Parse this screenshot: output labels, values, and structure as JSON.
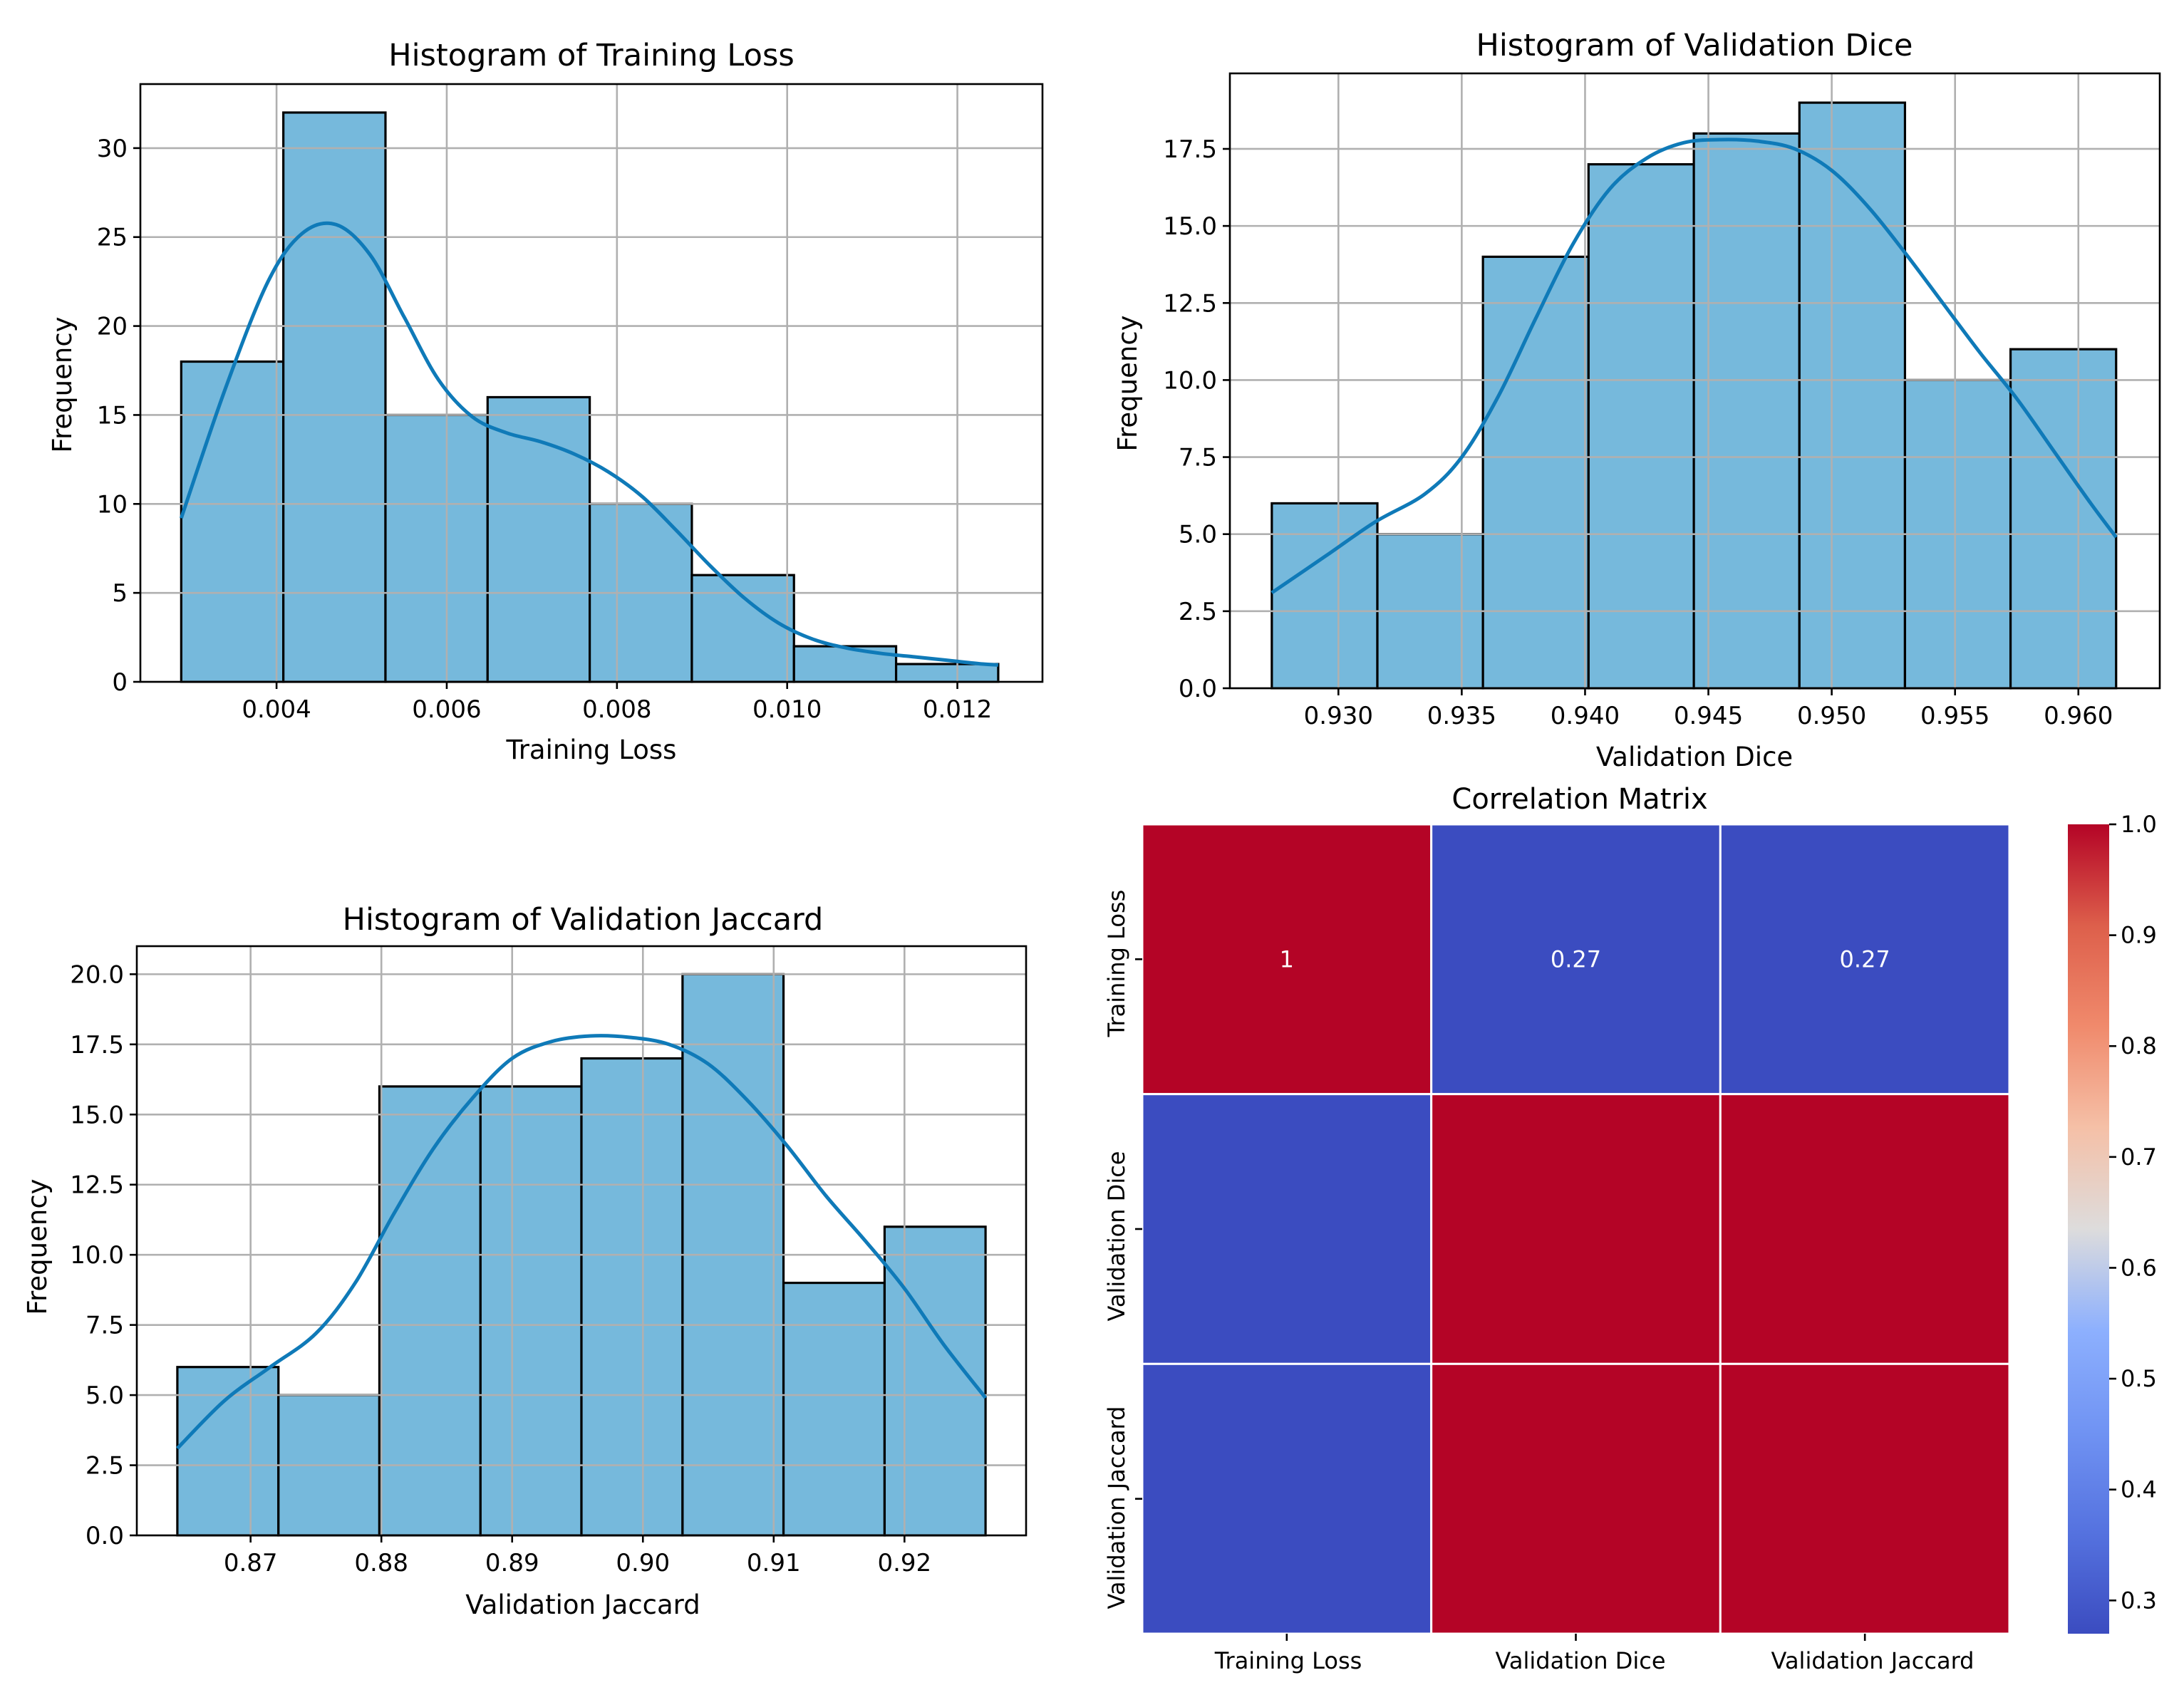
{
  "chart_data": [
    {
      "type": "bar",
      "subtype": "histogram",
      "title": "Histogram of Training Loss",
      "xlabel": "Training Loss",
      "ylabel": "Frequency",
      "bin_edges": [
        0.00288,
        0.00408,
        0.00528,
        0.00648,
        0.00768,
        0.00888,
        0.01008,
        0.01128,
        0.01248
      ],
      "values": [
        18,
        32,
        15,
        16,
        10,
        6,
        2,
        1
      ],
      "kde": {
        "x": [
          0.00288,
          0.0034,
          0.0039,
          0.0043,
          0.0047,
          0.0051,
          0.0055,
          0.0059,
          0.0063,
          0.0067,
          0.0071,
          0.0075,
          0.0079,
          0.0083,
          0.0087,
          0.0091,
          0.0095,
          0.0099,
          0.0103,
          0.0107,
          0.0111,
          0.0115,
          0.0119,
          0.0123,
          0.01248
        ],
        "y": [
          9.2,
          16.5,
          22.5,
          25.2,
          25.7,
          24.0,
          20.5,
          17.0,
          14.9,
          14.0,
          13.5,
          12.8,
          11.8,
          10.4,
          8.5,
          6.5,
          4.7,
          3.3,
          2.4,
          1.9,
          1.6,
          1.4,
          1.2,
          1.0,
          0.95
        ]
      },
      "xlim": [
        0.0024,
        0.013
      ],
      "ylim": [
        0,
        33.6
      ],
      "xticks": [
        0.004,
        0.006,
        0.008,
        0.01,
        0.012
      ],
      "xtick_labels": [
        "0.004",
        "0.006",
        "0.008",
        "0.010",
        "0.012"
      ],
      "yticks": [
        0,
        5,
        10,
        15,
        20,
        25,
        30
      ],
      "ytick_labels": [
        "0",
        "5",
        "10",
        "15",
        "20",
        "25",
        "30"
      ],
      "grid": true,
      "bar_color": "#76b9dc",
      "line_color": "#0f7ab8"
    },
    {
      "type": "bar",
      "subtype": "histogram",
      "title": "Histogram of Validation Dice",
      "xlabel": "Validation Dice",
      "ylabel": "Frequency",
      "bin_edges": [
        0.9273,
        0.93158,
        0.93586,
        0.94014,
        0.94441,
        0.94869,
        0.95297,
        0.95725,
        0.96153
      ],
      "values": [
        6,
        5,
        14,
        17,
        18,
        19,
        10,
        11
      ],
      "kde": {
        "x": [
          0.9273,
          0.9295,
          0.9315,
          0.9335,
          0.935,
          0.9365,
          0.938,
          0.9395,
          0.941,
          0.9425,
          0.944,
          0.9455,
          0.947,
          0.9485,
          0.95,
          0.9515,
          0.953,
          0.9545,
          0.956,
          0.9575,
          0.959,
          0.9605,
          0.96153
        ],
        "y": [
          3.1,
          4.3,
          5.4,
          6.3,
          7.5,
          9.5,
          12.0,
          14.4,
          16.2,
          17.2,
          17.7,
          17.8,
          17.75,
          17.5,
          16.8,
          15.6,
          14.1,
          12.5,
          10.9,
          9.4,
          7.7,
          6.0,
          4.9
        ]
      },
      "xlim": [
        0.9256,
        0.9633
      ],
      "ylim": [
        0,
        19.95
      ],
      "xticks": [
        0.93,
        0.935,
        0.94,
        0.945,
        0.95,
        0.955,
        0.96
      ],
      "xtick_labels": [
        "0.930",
        "0.935",
        "0.940",
        "0.945",
        "0.950",
        "0.955",
        "0.960"
      ],
      "yticks": [
        0,
        2.5,
        5,
        7.5,
        10,
        12.5,
        15,
        17.5
      ],
      "ytick_labels": [
        "0.0",
        "2.5",
        "5.0",
        "7.5",
        "10.0",
        "12.5",
        "15.0",
        "17.5"
      ],
      "grid": true,
      "bar_color": "#76b9dc",
      "line_color": "#0f7ab8"
    },
    {
      "type": "bar",
      "subtype": "histogram",
      "title": "Histogram of Validation Jaccard",
      "xlabel": "Validation Jaccard",
      "ylabel": "Frequency",
      "bin_edges": [
        0.8644,
        0.87213,
        0.87985,
        0.88758,
        0.8953,
        0.90303,
        0.91075,
        0.91848,
        0.9262
      ],
      "values": [
        6,
        5,
        16,
        16,
        17,
        20,
        9,
        11
      ],
      "kde": {
        "x": [
          0.8644,
          0.868,
          0.8715,
          0.875,
          0.878,
          0.881,
          0.884,
          0.887,
          0.89,
          0.893,
          0.896,
          0.899,
          0.902,
          0.905,
          0.908,
          0.911,
          0.914,
          0.917,
          0.92,
          0.923,
          0.9262
        ],
        "y": [
          3.1,
          4.8,
          6.0,
          7.2,
          9.0,
          11.5,
          13.8,
          15.6,
          17.0,
          17.6,
          17.8,
          17.75,
          17.5,
          16.8,
          15.5,
          13.9,
          12.1,
          10.5,
          8.8,
          6.8,
          4.9
        ]
      },
      "xlim": [
        0.8613,
        0.9293
      ],
      "ylim": [
        0,
        21
      ],
      "xticks": [
        0.87,
        0.88,
        0.89,
        0.9,
        0.91,
        0.92
      ],
      "xtick_labels": [
        "0.87",
        "0.88",
        "0.89",
        "0.90",
        "0.91",
        "0.92"
      ],
      "yticks": [
        0,
        2.5,
        5,
        7.5,
        10,
        12.5,
        15,
        17.5,
        20
      ],
      "ytick_labels": [
        "0.0",
        "2.5",
        "5.0",
        "7.5",
        "10.0",
        "12.5",
        "15.0",
        "17.5",
        "20.0"
      ],
      "grid": true,
      "bar_color": "#76b9dc",
      "line_color": "#0f7ab8"
    },
    {
      "type": "heatmap",
      "title": "Correlation Matrix",
      "labels": [
        "Training Loss",
        "Validation Dice",
        "Validation Jaccard"
      ],
      "values": [
        [
          1.0,
          0.27,
          0.27
        ],
        [
          0.27,
          1.0,
          1.0
        ],
        [
          0.27,
          1.0,
          1.0
        ]
      ],
      "annotations": [
        [
          "1",
          "0.27",
          "0.27"
        ],
        [
          "",
          "",
          ""
        ],
        [
          "",
          "",
          ""
        ]
      ],
      "colormap": "coolwarm",
      "colorbar_range": [
        0.27,
        1.0
      ],
      "colorbar_ticks": [
        0.3,
        0.4,
        0.5,
        0.6,
        0.7,
        0.8,
        0.9,
        1.0
      ],
      "colorbar_tick_labels": [
        "0.3",
        "0.4",
        "0.5",
        "0.6",
        "0.7",
        "0.8",
        "0.9",
        "1.0"
      ],
      "low_color": "#3b4cc0",
      "high_color": "#b40426"
    }
  ]
}
